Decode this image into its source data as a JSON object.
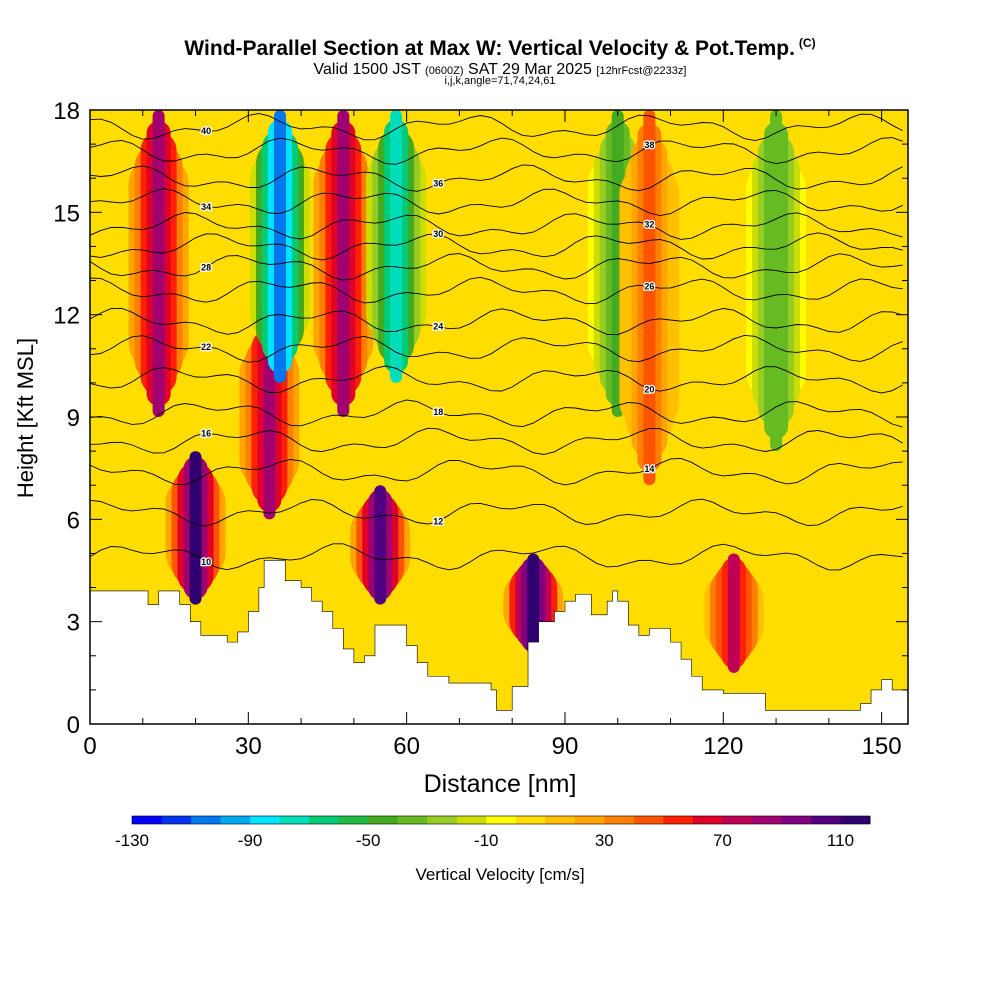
{
  "title": {
    "main": "Wind-Parallel Section at Max W: Vertical Velocity & Pot.Temp.",
    "corner": "(C)",
    "valid_prefix": "Valid 1500 JST",
    "valid_z": "(0600Z)",
    "valid_date": "SAT 29 Mar 2025",
    "valid_fcst": "[12hrFcst@2233z]",
    "ijk": "i,j,k,angle=71,74,24,61"
  },
  "chart_data": {
    "type": "heatmap",
    "xlabel": "Distance [nm]",
    "ylabel": "Height [Kft MSL]",
    "xlim": [
      0,
      155
    ],
    "ylim": [
      0,
      18
    ],
    "x_ticks": [
      0,
      30,
      60,
      90,
      120,
      150
    ],
    "y_ticks": [
      0,
      3,
      6,
      9,
      12,
      15,
      18
    ],
    "colorbar": {
      "label": "Vertical Velocity [cm/s]",
      "tick_labels": [
        "-130",
        "-90",
        "-50",
        "-10",
        "30",
        "70",
        "110"
      ],
      "tick_values": [
        -130,
        -90,
        -50,
        -10,
        30,
        70,
        110
      ],
      "min": -130,
      "max": 120,
      "step": 10,
      "colors": [
        "#0000ff",
        "#0033ee",
        "#0077ee",
        "#00aaee",
        "#00e5ff",
        "#00ddbb",
        "#00cc77",
        "#22bb44",
        "#44aa22",
        "#66bb22",
        "#99cc22",
        "#ccdd00",
        "#ffff00",
        "#ffdd00",
        "#ffc000",
        "#ffa500",
        "#ff8000",
        "#ff5500",
        "#ff2000",
        "#e0002a",
        "#c00055",
        "#a00070",
        "#800080",
        "#500080",
        "#300070"
      ]
    },
    "w_cells": [
      {
        "x": 13,
        "ytop": 18,
        "ybot": 9,
        "w": 80
      },
      {
        "x": 20,
        "ytop": 8,
        "ybot": 3.5,
        "w": 110
      },
      {
        "x": 34,
        "ytop": 12,
        "ybot": 6,
        "w": 80
      },
      {
        "x": 36,
        "ytop": 18,
        "ybot": 10,
        "w": -110
      },
      {
        "x": 48,
        "ytop": 18,
        "ybot": 9,
        "w": 80
      },
      {
        "x": 55,
        "ytop": 7,
        "ybot": 3.5,
        "w": 100
      },
      {
        "x": 58,
        "ytop": 18,
        "ybot": 10,
        "w": -80
      },
      {
        "x": 84,
        "ytop": 5,
        "ybot": 2,
        "w": 120
      },
      {
        "x": 100,
        "ytop": 18,
        "ybot": 9,
        "w": -50
      },
      {
        "x": 106,
        "ytop": 18,
        "ybot": 7,
        "w": 40
      },
      {
        "x": 122,
        "ytop": 5,
        "ybot": 1.5,
        "w": 70
      },
      {
        "x": 130,
        "ytop": 18,
        "ybot": 8,
        "w": -40
      }
    ],
    "theta_contours": [
      {
        "label": "10",
        "base_y": 4.9
      },
      {
        "label": "12",
        "base_y": 6.2
      },
      {
        "label": "14",
        "base_y": 7.4
      },
      {
        "label": "16",
        "base_y": 8.3
      },
      {
        "label": "18",
        "base_y": 9.1
      },
      {
        "label": "20",
        "base_y": 10.1
      },
      {
        "label": "22",
        "base_y": 11.0
      },
      {
        "label": "24",
        "base_y": 11.8
      },
      {
        "label": "26",
        "base_y": 12.7
      },
      {
        "label": "28",
        "base_y": 13.4
      },
      {
        "label": "30",
        "base_y": 14.0
      },
      {
        "label": "32",
        "base_y": 14.6
      },
      {
        "label": "34",
        "base_y": 15.3
      },
      {
        "label": "36",
        "base_y": 16.0
      },
      {
        "label": "38",
        "base_y": 16.8
      },
      {
        "label": "40",
        "base_y": 17.5
      }
    ],
    "terrain": [
      [
        0,
        3.9
      ],
      [
        9,
        3.9
      ],
      [
        11,
        3.5
      ],
      [
        13,
        3.9
      ],
      [
        15,
        3.9
      ],
      [
        17,
        3.5
      ],
      [
        19,
        3.0
      ],
      [
        21,
        2.6
      ],
      [
        24,
        2.6
      ],
      [
        26,
        2.4
      ],
      [
        28,
        2.7
      ],
      [
        30,
        3.3
      ],
      [
        32,
        4.0
      ],
      [
        33,
        4.8
      ],
      [
        36,
        4.8
      ],
      [
        37,
        4.2
      ],
      [
        40,
        4.0
      ],
      [
        42,
        3.6
      ],
      [
        44,
        3.3
      ],
      [
        46,
        2.8
      ],
      [
        48,
        2.2
      ],
      [
        50,
        1.8
      ],
      [
        52,
        2.0
      ],
      [
        54,
        2.9
      ],
      [
        57,
        2.9
      ],
      [
        60,
        2.3
      ],
      [
        62,
        1.8
      ],
      [
        64,
        1.4
      ],
      [
        68,
        1.2
      ],
      [
        72,
        1.2
      ],
      [
        76,
        1.0
      ],
      [
        77,
        0.4
      ],
      [
        78,
        0.4
      ],
      [
        80,
        1.1
      ],
      [
        83,
        2.4
      ],
      [
        85,
        3.0
      ],
      [
        88,
        3.3
      ],
      [
        90,
        3.6
      ],
      [
        92,
        3.8
      ],
      [
        95,
        3.2
      ],
      [
        98,
        3.6
      ],
      [
        99,
        3.9
      ],
      [
        100,
        3.6
      ],
      [
        102,
        2.9
      ],
      [
        104,
        2.6
      ],
      [
        106,
        2.8
      ],
      [
        110,
        2.4
      ],
      [
        112,
        1.9
      ],
      [
        114,
        1.4
      ],
      [
        116,
        1.0
      ],
      [
        118,
        1.0
      ],
      [
        120,
        0.9
      ],
      [
        124,
        0.9
      ],
      [
        126,
        0.9
      ],
      [
        128,
        0.4
      ],
      [
        134,
        0.4
      ],
      [
        140,
        0.4
      ],
      [
        146,
        0.6
      ],
      [
        148,
        1.0
      ],
      [
        150,
        1.3
      ],
      [
        152,
        1.0
      ],
      [
        155,
        1.0
      ]
    ]
  }
}
